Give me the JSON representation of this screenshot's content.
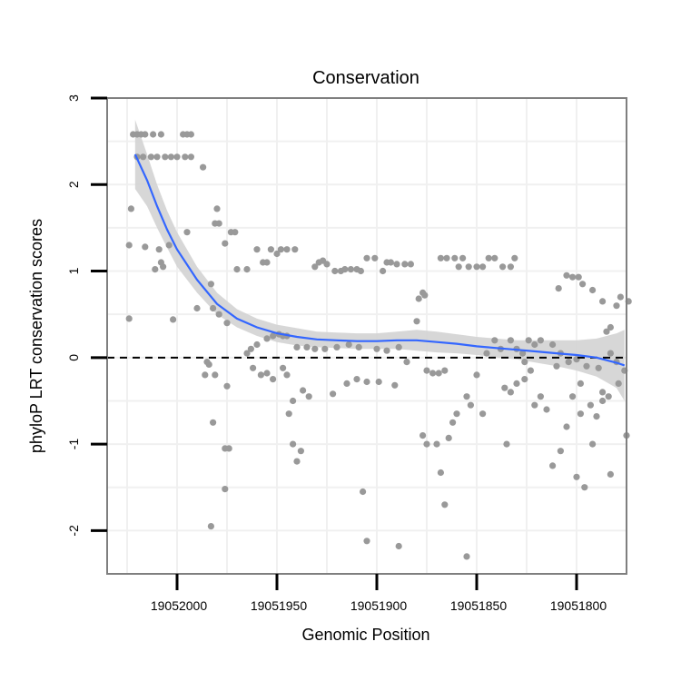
{
  "chart_data": {
    "type": "scatter",
    "title": "Conservation",
    "xlabel": "Genomic Position",
    "ylabel": "phyloP LRT conservation scores",
    "x_reversed": true,
    "xlim": [
      19052035,
      19051775
    ],
    "ylim": [
      -2.5,
      3.0
    ],
    "x_ticks": [
      19052000,
      19051950,
      19051900,
      19051850,
      19051800
    ],
    "x_tick_labels": [
      "19052000",
      "19051950",
      "19051900",
      "19051850",
      "19051800"
    ],
    "y_ticks": [
      -2,
      -1,
      0,
      1,
      2,
      3
    ],
    "y_tick_labels": [
      "-2",
      "-1",
      "0",
      "1",
      "2",
      "3"
    ],
    "reference_line": {
      "y": 0,
      "style": "dashed"
    },
    "grid": true,
    "colors": {
      "points": "#999999",
      "smooth": "#3366ff",
      "ribbon": "#d3d3d3",
      "frame": "#7f7f7f",
      "grid": "#f0f0f0"
    },
    "points": [
      [
        19052022,
        2.58
      ],
      [
        19052020,
        2.58
      ],
      [
        19052018,
        2.58
      ],
      [
        19052016,
        2.58
      ],
      [
        19052012,
        2.58
      ],
      [
        19052008,
        2.58
      ],
      [
        19051997,
        2.58
      ],
      [
        19051995,
        2.58
      ],
      [
        19051993,
        2.58
      ],
      [
        19052020,
        2.32
      ],
      [
        19052017,
        2.32
      ],
      [
        19052013,
        2.32
      ],
      [
        19052010,
        2.32
      ],
      [
        19052006,
        2.32
      ],
      [
        19052003,
        2.32
      ],
      [
        19052000,
        2.32
      ],
      [
        19051996,
        2.32
      ],
      [
        19051993,
        2.32
      ],
      [
        19051987,
        2.2
      ],
      [
        19052024,
        1.3
      ],
      [
        19052023,
        1.72
      ],
      [
        19052016,
        1.28
      ],
      [
        19052009,
        1.25
      ],
      [
        19052004,
        1.3
      ],
      [
        19051995,
        1.45
      ],
      [
        19052011,
        1.02
      ],
      [
        19052007,
        1.05
      ],
      [
        19052008,
        1.1
      ],
      [
        19052002,
        0.44
      ],
      [
        19052024,
        0.45
      ],
      [
        19051980,
        1.72
      ],
      [
        19051981,
        1.55
      ],
      [
        19051979,
        1.55
      ],
      [
        19051976,
        1.32
      ],
      [
        19051973,
        1.45
      ],
      [
        19051971,
        1.45
      ],
      [
        19051970,
        1.02
      ],
      [
        19051965,
        1.02
      ],
      [
        19051960,
        1.25
      ],
      [
        19051957,
        1.1
      ],
      [
        19051955,
        1.1
      ],
      [
        19051953,
        1.25
      ],
      [
        19051950,
        1.2
      ],
      [
        19051948,
        1.25
      ],
      [
        19051945,
        1.25
      ],
      [
        19051941,
        1.25
      ],
      [
        19051983,
        0.85
      ],
      [
        19051982,
        0.57
      ],
      [
        19051990,
        0.57
      ],
      [
        19051979,
        0.5
      ],
      [
        19051975,
        0.4
      ],
      [
        19051985,
        -0.05
      ],
      [
        19051984,
        -0.08
      ],
      [
        19051986,
        -0.2
      ],
      [
        19051981,
        -0.2
      ],
      [
        19051982,
        -0.75
      ],
      [
        19051975,
        -0.33
      ],
      [
        19051965,
        0.05
      ],
      [
        19051963,
        0.1
      ],
      [
        19051960,
        0.15
      ],
      [
        19051955,
        0.22
      ],
      [
        19051952,
        0.25
      ],
      [
        19051949,
        0.27
      ],
      [
        19051947,
        0.25
      ],
      [
        19051945,
        0.25
      ],
      [
        19051962,
        -0.12
      ],
      [
        19051958,
        -0.2
      ],
      [
        19051955,
        -0.18
      ],
      [
        19051952,
        -0.25
      ],
      [
        19051947,
        -0.12
      ],
      [
        19051945,
        -0.2
      ],
      [
        19051942,
        -0.5
      ],
      [
        19051937,
        -0.38
      ],
      [
        19051934,
        -0.45
      ],
      [
        19051976,
        -1.05
      ],
      [
        19051974,
        -1.05
      ],
      [
        19051976,
        -1.52
      ],
      [
        19051983,
        -1.95
      ],
      [
        19051942,
        -1.0
      ],
      [
        19051940,
        -1.2
      ],
      [
        19051938,
        -1.08
      ],
      [
        19051944,
        -0.65
      ],
      [
        19051931,
        1.05
      ],
      [
        19051929,
        1.1
      ],
      [
        19051927,
        1.12
      ],
      [
        19051925,
        1.08
      ],
      [
        19051921,
        1.0
      ],
      [
        19051918,
        1.0
      ],
      [
        19051916,
        1.02
      ],
      [
        19051913,
        1.02
      ],
      [
        19051910,
        1.02
      ],
      [
        19051908,
        1.0
      ],
      [
        19051905,
        1.15
      ],
      [
        19051901,
        1.15
      ],
      [
        19051897,
        1.0
      ],
      [
        19051895,
        1.1
      ],
      [
        19051893,
        1.1
      ],
      [
        19051890,
        1.08
      ],
      [
        19051886,
        1.08
      ],
      [
        19051883,
        1.08
      ],
      [
        19051940,
        0.12
      ],
      [
        19051935,
        0.12
      ],
      [
        19051931,
        0.1
      ],
      [
        19051926,
        0.1
      ],
      [
        19051920,
        0.12
      ],
      [
        19051914,
        0.15
      ],
      [
        19051909,
        0.12
      ],
      [
        19051900,
        0.1
      ],
      [
        19051895,
        0.08
      ],
      [
        19051889,
        0.12
      ],
      [
        19051922,
        -0.42
      ],
      [
        19051915,
        -0.3
      ],
      [
        19051910,
        -0.25
      ],
      [
        19051905,
        -0.28
      ],
      [
        19051899,
        -0.28
      ],
      [
        19051891,
        -0.32
      ],
      [
        19051885,
        -0.05
      ],
      [
        19051880,
        0.42
      ],
      [
        19051879,
        0.68
      ],
      [
        19051877,
        0.75
      ],
      [
        19051876,
        0.72
      ],
      [
        19051907,
        -1.55
      ],
      [
        19051905,
        -2.12
      ],
      [
        19051889,
        -2.18
      ],
      [
        19051875,
        -0.15
      ],
      [
        19051872,
        -0.18
      ],
      [
        19051869,
        -0.18
      ],
      [
        19051866,
        -0.15
      ],
      [
        19051877,
        -0.9
      ],
      [
        19051875,
        -1.0
      ],
      [
        19051870,
        -1.0
      ],
      [
        19051868,
        -1.33
      ],
      [
        19051866,
        -1.7
      ],
      [
        19051864,
        -0.93
      ],
      [
        19051862,
        -0.75
      ],
      [
        19051860,
        -0.65
      ],
      [
        19051868,
        1.15
      ],
      [
        19051865,
        1.15
      ],
      [
        19051861,
        1.15
      ],
      [
        19051859,
        1.05
      ],
      [
        19051857,
        1.15
      ],
      [
        19051854,
        1.05
      ],
      [
        19051850,
        1.05
      ],
      [
        19051847,
        1.05
      ],
      [
        19051844,
        1.15
      ],
      [
        19051841,
        1.15
      ],
      [
        19051837,
        1.05
      ],
      [
        19051833,
        1.05
      ],
      [
        19051831,
        1.15
      ],
      [
        19051855,
        -0.45
      ],
      [
        19051853,
        -0.55
      ],
      [
        19051850,
        -0.2
      ],
      [
        19051847,
        -0.65
      ],
      [
        19051855,
        -2.3
      ],
      [
        19051845,
        0.05
      ],
      [
        19051841,
        0.2
      ],
      [
        19051838,
        0.1
      ],
      [
        19051836,
        -0.35
      ],
      [
        19051833,
        0.2
      ],
      [
        19051830,
        0.1
      ],
      [
        19051827,
        0.05
      ],
      [
        19051824,
        0.2
      ],
      [
        19051821,
        0.15
      ],
      [
        19051818,
        0.2
      ],
      [
        19051835,
        -1.0
      ],
      [
        19051833,
        -0.4
      ],
      [
        19051830,
        -0.3
      ],
      [
        19051826,
        -0.05
      ],
      [
        19051826,
        -0.25
      ],
      [
        19051823,
        -0.15
      ],
      [
        19051821,
        -0.55
      ],
      [
        19051818,
        -0.45
      ],
      [
        19051815,
        -0.6
      ],
      [
        19051812,
        -1.25
      ],
      [
        19051808,
        -1.08
      ],
      [
        19051805,
        -0.8
      ],
      [
        19051802,
        -0.45
      ],
      [
        19051798,
        -0.65
      ],
      [
        19051792,
        -1.0
      ],
      [
        19051783,
        -1.35
      ],
      [
        19051779,
        -0.3
      ],
      [
        19051775,
        -0.9
      ],
      [
        19051812,
        0.15
      ],
      [
        19051808,
        0.05
      ],
      [
        19051804,
        -0.05
      ],
      [
        19051798,
        -0.3
      ],
      [
        19051793,
        -0.55
      ],
      [
        19051787,
        -0.4
      ],
      [
        19051783,
        0.05
      ],
      [
        19051780,
        -0.05
      ],
      [
        19051776,
        -0.15
      ],
      [
        19051809,
        0.8
      ],
      [
        19051805,
        0.95
      ],
      [
        19051802,
        0.93
      ],
      [
        19051799,
        0.93
      ],
      [
        19051797,
        0.85
      ],
      [
        19051792,
        0.78
      ],
      [
        19051787,
        0.65
      ],
      [
        19051785,
        0.3
      ],
      [
        19051783,
        0.35
      ],
      [
        19051780,
        0.6
      ],
      [
        19051778,
        0.7
      ],
      [
        19051774,
        0.65
      ],
      [
        19051800,
        -1.38
      ],
      [
        19051796,
        -1.5
      ],
      [
        19051790,
        -0.68
      ],
      [
        19051787,
        -0.5
      ],
      [
        19051784,
        -0.45
      ],
      [
        19051810,
        -0.1
      ],
      [
        19051795,
        -0.1
      ],
      [
        19051800,
        -0.02
      ],
      [
        19051789,
        -0.12
      ]
    ],
    "smooth_line": [
      [
        19052021,
        2.35
      ],
      [
        19052015,
        2.05
      ],
      [
        19052010,
        1.75
      ],
      [
        19052005,
        1.48
      ],
      [
        19052000,
        1.25
      ],
      [
        19051990,
        0.9
      ],
      [
        19051980,
        0.62
      ],
      [
        19051970,
        0.45
      ],
      [
        19051960,
        0.35
      ],
      [
        19051950,
        0.28
      ],
      [
        19051940,
        0.24
      ],
      [
        19051930,
        0.21
      ],
      [
        19051920,
        0.2
      ],
      [
        19051910,
        0.19
      ],
      [
        19051900,
        0.19
      ],
      [
        19051890,
        0.2
      ],
      [
        19051880,
        0.2
      ],
      [
        19051870,
        0.18
      ],
      [
        19051860,
        0.16
      ],
      [
        19051850,
        0.13
      ],
      [
        19051840,
        0.11
      ],
      [
        19051830,
        0.09
      ],
      [
        19051820,
        0.07
      ],
      [
        19051810,
        0.05
      ],
      [
        19051800,
        0.03
      ],
      [
        19051790,
        0.0
      ],
      [
        19051780,
        -0.06
      ],
      [
        19051776,
        -0.09
      ]
    ],
    "confidence_band": {
      "upper": [
        2.75,
        2.35,
        2.0,
        1.7,
        1.45,
        1.05,
        0.75,
        0.56,
        0.45,
        0.38,
        0.34,
        0.3,
        0.29,
        0.28,
        0.28,
        0.3,
        0.32,
        0.3,
        0.27,
        0.24,
        0.22,
        0.2,
        0.2,
        0.2,
        0.2,
        0.22,
        0.28,
        0.32
      ],
      "lower": [
        1.95,
        1.75,
        1.5,
        1.27,
        1.05,
        0.75,
        0.5,
        0.35,
        0.25,
        0.18,
        0.14,
        0.12,
        0.11,
        0.1,
        0.1,
        0.1,
        0.08,
        0.06,
        0.05,
        0.03,
        0.0,
        -0.02,
        -0.06,
        -0.1,
        -0.15,
        -0.22,
        -0.35,
        -0.5
      ]
    }
  }
}
